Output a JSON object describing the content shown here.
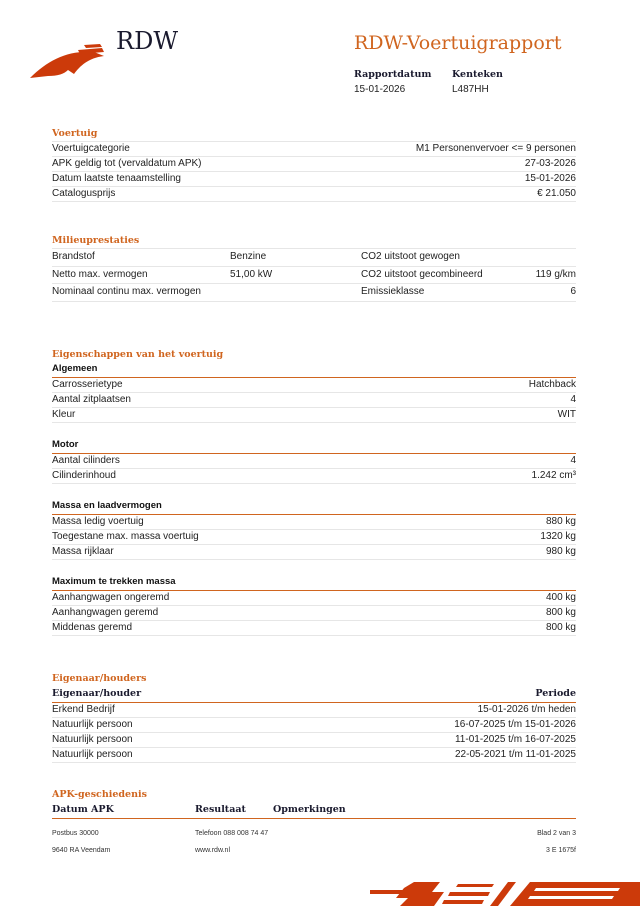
{
  "header": {
    "logo_text": "RDW",
    "title": "RDW-Voertuigrapport",
    "report_date_label": "Rapportdatum",
    "report_date": "15-01-2026",
    "plate_label": "Kenteken",
    "plate": "L487HH"
  },
  "voertuig": {
    "title": "Voertuig",
    "rows": [
      {
        "label": "Voertuigcategorie",
        "value": "M1 Personenvervoer <= 9 personen"
      },
      {
        "label": "APK geldig tot (vervaldatum APK)",
        "value": "27-03-2026"
      },
      {
        "label": "Datum laatste tenaamstelling",
        "value": "15-01-2026"
      },
      {
        "label": "Catalogusprijs",
        "value": "€ 21.050"
      }
    ]
  },
  "milieu": {
    "title": "Milieuprestaties",
    "rows": [
      {
        "l1": "Brandstof",
        "v1": "Benzine",
        "l2": "CO2 uitstoot gewogen",
        "v2": ""
      },
      {
        "l1": "Netto max. vermogen",
        "v1": "51,00 kW",
        "l2": "CO2 uitstoot gecombineerd",
        "v2": "119 g/km"
      },
      {
        "l1": "Nominaal continu max. vermogen",
        "v1": "",
        "l2": "Emissieklasse",
        "v2": "6"
      }
    ]
  },
  "eigenschappen": {
    "title": "Eigenschappen van het voertuig",
    "groups": [
      {
        "title": "Algemeen",
        "rows": [
          {
            "label": "Carrosserietype",
            "value": "Hatchback"
          },
          {
            "label": "Aantal zitplaatsen",
            "value": "4"
          },
          {
            "label": "Kleur",
            "value": "WIT"
          }
        ]
      },
      {
        "title": "Motor",
        "rows": [
          {
            "label": "Aantal cilinders",
            "value": "4"
          },
          {
            "label": "Cilinderinhoud",
            "value": "1.242 cm³"
          }
        ]
      },
      {
        "title": "Massa en laadvermogen",
        "rows": [
          {
            "label": "Massa ledig voertuig",
            "value": "880 kg"
          },
          {
            "label": "Toegestane max. massa voertuig",
            "value": "1320 kg"
          },
          {
            "label": "Massa rijklaar",
            "value": "980 kg"
          }
        ]
      },
      {
        "title": "Maximum te trekken massa",
        "rows": [
          {
            "label": "Aanhangwagen ongeremd",
            "value": "400 kg"
          },
          {
            "label": "Aanhangwagen geremd",
            "value": "800 kg"
          },
          {
            "label": "Middenas geremd",
            "value": "800 kg"
          }
        ]
      }
    ]
  },
  "eigenaar": {
    "title": "Eigenaar/houders",
    "col1": "Eigenaar/houder",
    "col2": "Periode",
    "rows": [
      {
        "label": "Erkend Bedrijf",
        "value": "15-01-2026 t/m heden"
      },
      {
        "label": "Natuurlijk persoon",
        "value": "16-07-2025 t/m 15-01-2026"
      },
      {
        "label": "Natuurlijk persoon",
        "value": "11-01-2025 t/m 16-07-2025"
      },
      {
        "label": "Natuurlijk persoon",
        "value": "22-05-2021 t/m 11-01-2025"
      }
    ]
  },
  "apk": {
    "title": "APK-geschiedenis",
    "col1": "Datum APK",
    "col2": "Resultaat",
    "col3": "Opmerkingen"
  },
  "footer": {
    "address1": "Postbus 30000",
    "address2": "9640 RA Veendam",
    "phone": "Telefoon 088 008 74 47",
    "web": "www.rdw.nl",
    "page": "Blad 2 van 3",
    "code": "3 E 1675f"
  },
  "colors": {
    "accent": "#d0651f",
    "logo": "#cc3a0a",
    "navy": "#1a1a2e"
  }
}
